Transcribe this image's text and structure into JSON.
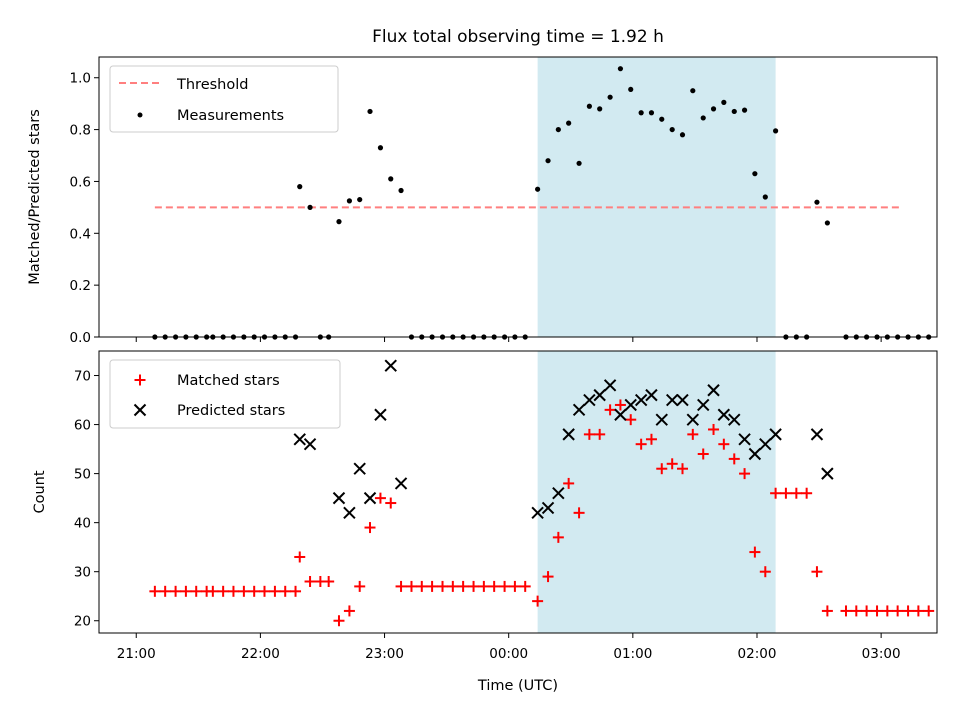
{
  "title": "Flux total observing time = 1.92 h",
  "xlabel": "Time (UTC)",
  "x_ticks": [
    "21:00",
    "22:00",
    "23:00",
    "00:00",
    "01:00",
    "02:00",
    "03:00"
  ],
  "top": {
    "ylabel": "Matched/Predicted stars"
  },
  "bottom": {
    "ylabel": "Count"
  },
  "colors": {
    "threshold": "#ff7f7f",
    "measurement": "#000000",
    "matched": "#ff0000",
    "predicted": "#000000",
    "shade": "#add8e6"
  },
  "chart_data": [
    {
      "type": "scatter",
      "title": "Flux total observing time = 1.92 h",
      "xlabel": "",
      "ylabel": "Matched/Predicted stars",
      "x_unit": "hours after 21:00 UTC",
      "xlim": [
        -0.3,
        6.45
      ],
      "ylim": [
        0,
        1.08
      ],
      "y_ticks": [
        0.0,
        0.2,
        0.4,
        0.6,
        0.8,
        1.0
      ],
      "legend": "top-left",
      "grid": false,
      "shaded_region": [
        3.233,
        5.15
      ],
      "threshold": {
        "name": "Threshold",
        "y": 0.5,
        "x_range": [
          0.15,
          6.15
        ],
        "style": "dashed"
      },
      "series": [
        {
          "name": "Measurements",
          "x": [
            0.15,
            0.233,
            0.317,
            0.4,
            0.483,
            0.567,
            0.617,
            0.7,
            0.783,
            0.867,
            0.95,
            1.033,
            1.117,
            1.2,
            1.283,
            1.317,
            1.4,
            1.483,
            1.55,
            1.633,
            1.717,
            1.8,
            1.883,
            1.967,
            2.05,
            2.133,
            2.217,
            2.3,
            2.383,
            2.467,
            2.55,
            2.633,
            2.717,
            2.8,
            2.883,
            2.967,
            3.05,
            3.133,
            3.233,
            3.317,
            3.4,
            3.483,
            3.567,
            3.65,
            3.733,
            3.817,
            3.9,
            3.983,
            4.067,
            4.15,
            4.233,
            4.317,
            4.4,
            4.483,
            4.567,
            4.65,
            4.733,
            4.817,
            4.9,
            4.983,
            5.067,
            5.15,
            5.233,
            5.317,
            5.4,
            5.483,
            5.567,
            5.717,
            5.8,
            5.883,
            5.967,
            6.05,
            6.133,
            6.217,
            6.3,
            6.383
          ],
          "y": [
            0,
            0,
            0,
            0,
            0,
            0,
            0,
            0,
            0,
            0,
            0,
            0,
            0,
            0,
            0,
            0.58,
            0.5,
            0,
            0,
            0.445,
            0.525,
            0.53,
            0.87,
            0.73,
            0.61,
            0.565,
            0,
            0,
            0,
            0,
            0,
            0,
            0,
            0,
            0,
            0,
            0,
            0,
            0.57,
            0.68,
            0.8,
            0.825,
            0.67,
            0.89,
            0.88,
            0.925,
            1.035,
            0.955,
            0.865,
            0.865,
            0.84,
            0.8,
            0.78,
            0.95,
            0.845,
            0.88,
            0.905,
            0.87,
            0.875,
            0.63,
            0.54,
            0.795,
            0,
            0,
            0,
            0.52,
            0.44,
            0,
            0,
            0,
            0,
            0,
            0,
            0,
            0,
            0
          ]
        }
      ]
    },
    {
      "type": "scatter",
      "title": "",
      "xlabel": "Time (UTC)",
      "ylabel": "Count",
      "x_unit": "hours after 21:00 UTC",
      "xlim": [
        -0.3,
        6.45
      ],
      "ylim": [
        17.5,
        75
      ],
      "y_ticks": [
        20,
        30,
        40,
        50,
        60,
        70
      ],
      "legend": "top-left",
      "grid": false,
      "shaded_region": [
        3.233,
        5.15
      ],
      "series": [
        {
          "name": "Matched stars",
          "marker": "+",
          "x": [
            0.15,
            0.233,
            0.317,
            0.4,
            0.483,
            0.567,
            0.617,
            0.7,
            0.783,
            0.867,
            0.95,
            1.033,
            1.117,
            1.2,
            1.283,
            1.317,
            1.4,
            1.483,
            1.55,
            1.633,
            1.717,
            1.8,
            1.883,
            1.967,
            2.05,
            2.133,
            2.217,
            2.3,
            2.383,
            2.467,
            2.55,
            2.633,
            2.717,
            2.8,
            2.883,
            2.967,
            3.05,
            3.133,
            3.233,
            3.317,
            3.4,
            3.483,
            3.567,
            3.65,
            3.733,
            3.817,
            3.9,
            3.983,
            4.067,
            4.15,
            4.233,
            4.317,
            4.4,
            4.483,
            4.567,
            4.65,
            4.733,
            4.817,
            4.9,
            4.983,
            5.067,
            5.15,
            5.233,
            5.317,
            5.4,
            5.483,
            5.567,
            5.717,
            5.8,
            5.883,
            5.967,
            6.05,
            6.133,
            6.217,
            6.3,
            6.383
          ],
          "y": [
            26,
            26,
            26,
            26,
            26,
            26,
            26,
            26,
            26,
            26,
            26,
            26,
            26,
            26,
            26,
            33,
            28,
            28,
            28,
            20,
            22,
            27,
            39,
            45,
            44,
            27,
            27,
            27,
            27,
            27,
            27,
            27,
            27,
            27,
            27,
            27,
            27,
            27,
            24,
            29,
            37,
            48,
            42,
            58,
            58,
            63,
            64,
            61,
            56,
            57,
            51,
            52,
            51,
            58,
            54,
            59,
            56,
            53,
            50,
            34,
            30,
            46,
            46,
            46,
            46,
            30,
            22,
            22,
            22,
            22,
            22,
            22,
            22,
            22,
            22,
            22
          ]
        },
        {
          "name": "Predicted stars",
          "marker": "x",
          "x": [
            1.317,
            1.4,
            1.633,
            1.717,
            1.8,
            1.883,
            1.967,
            2.05,
            2.133,
            3.233,
            3.317,
            3.4,
            3.483,
            3.567,
            3.65,
            3.733,
            3.817,
            3.9,
            3.983,
            4.067,
            4.15,
            4.233,
            4.317,
            4.4,
            4.483,
            4.567,
            4.65,
            4.733,
            4.817,
            4.9,
            4.983,
            5.067,
            5.15,
            5.483,
            5.567
          ],
          "y": [
            57,
            56,
            45,
            42,
            51,
            45,
            62,
            72,
            48,
            42,
            43,
            46,
            58,
            63,
            65,
            66,
            68,
            62,
            64,
            65,
            66,
            61,
            65,
            65,
            61,
            64,
            67,
            62,
            61,
            57,
            54,
            56,
            58,
            58,
            50
          ]
        }
      ]
    }
  ]
}
